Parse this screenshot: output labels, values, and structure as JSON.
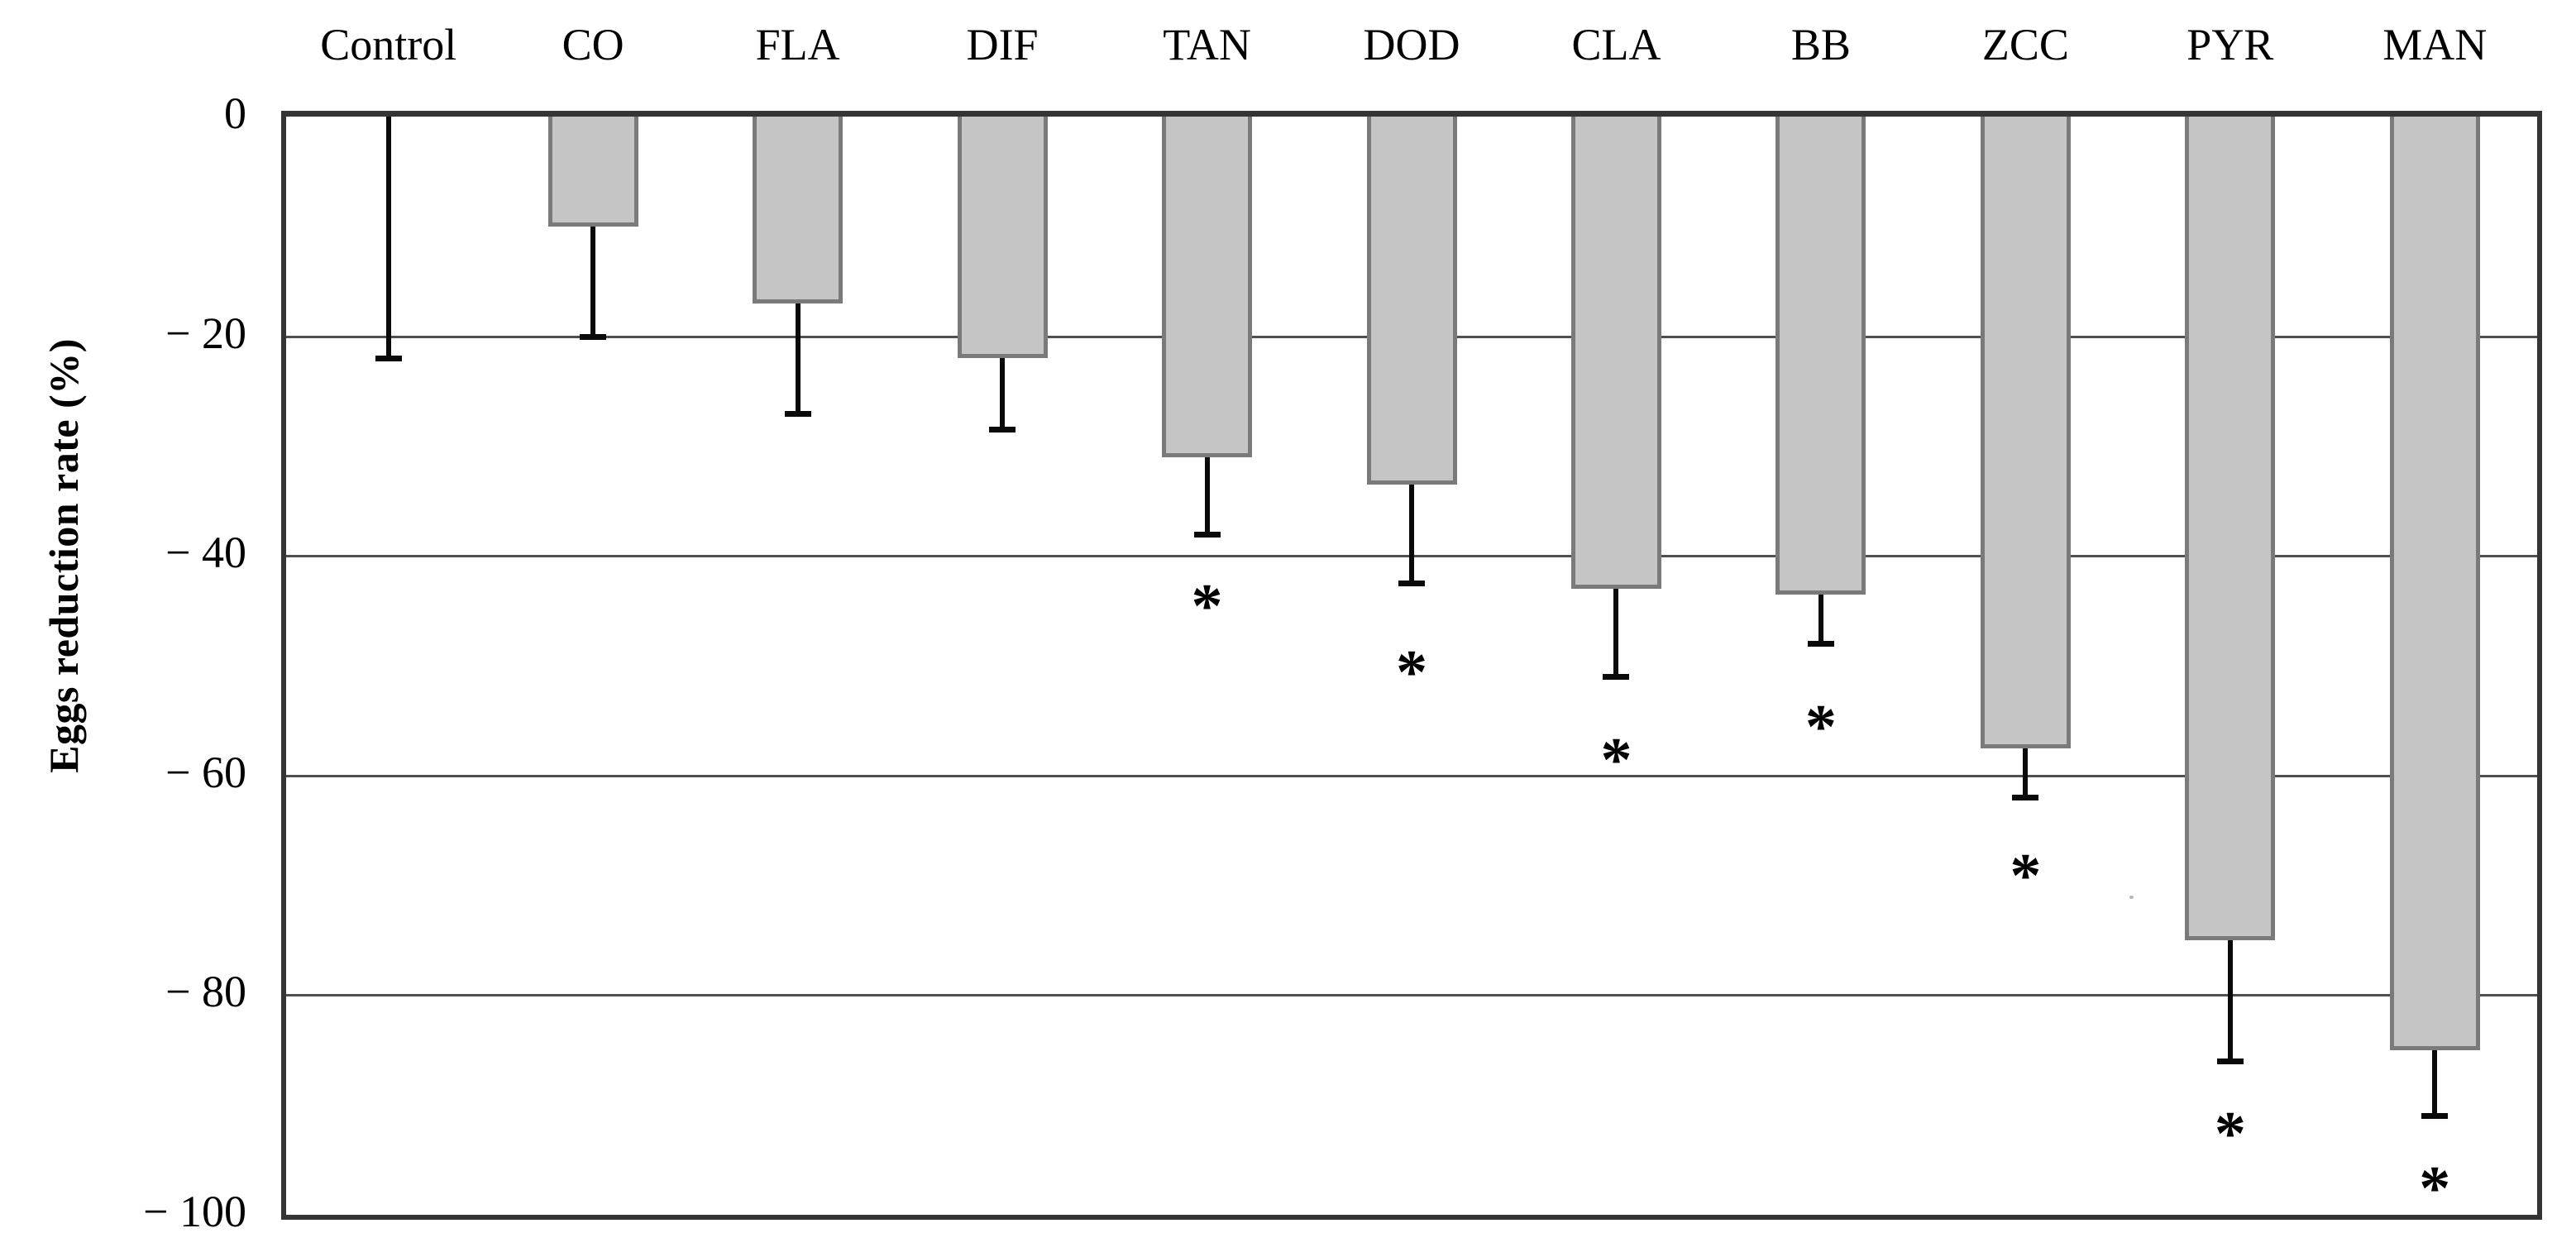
{
  "figure": {
    "background": "#ffffff"
  },
  "chart_data": {
    "type": "bar",
    "orientation": "vertical",
    "title": "",
    "xlabel": "",
    "ylabel": "Eggs reduction rate (%)",
    "ylim": [
      -100,
      0
    ],
    "yticks": [
      0,
      -20,
      -40,
      -60,
      -80,
      -100
    ],
    "ytick_labels": [
      "0",
      "− 20",
      "− 40",
      "− 60",
      "− 80",
      "− 100"
    ],
    "grid": "horizontal",
    "legend": "none",
    "categories": [
      "Control",
      "CO",
      "FLA",
      "DIF",
      "TAN",
      "DOD",
      "CLA",
      "BB",
      "ZCC",
      "PYR",
      "MAN"
    ],
    "values": [
      0,
      -10,
      -17,
      -22,
      -31,
      -33.5,
      -43,
      -43.5,
      -57.5,
      -75,
      -85
    ],
    "error_tips": [
      -22,
      -20,
      -27,
      -28.5,
      -38,
      -42.5,
      -51,
      -48,
      -62,
      -86,
      -91
    ],
    "significance": [
      null,
      null,
      null,
      null,
      "*",
      "*",
      "*",
      "*",
      "*",
      "*",
      "*"
    ],
    "significance_y": [
      null,
      null,
      null,
      null,
      -44,
      -50,
      -58,
      -55,
      -68.5,
      -92,
      -97
    ],
    "colors": {
      "bar_fill": "#c5c5c5",
      "bar_border": "#7a7a7a",
      "frame": "#353535",
      "gridline": "#4f4f4f",
      "error_bar": "#0a0a0a",
      "text": "#000000"
    },
    "annotations": [
      {
        "type": "speck",
        "x": 2229,
        "y": 942
      }
    ]
  }
}
